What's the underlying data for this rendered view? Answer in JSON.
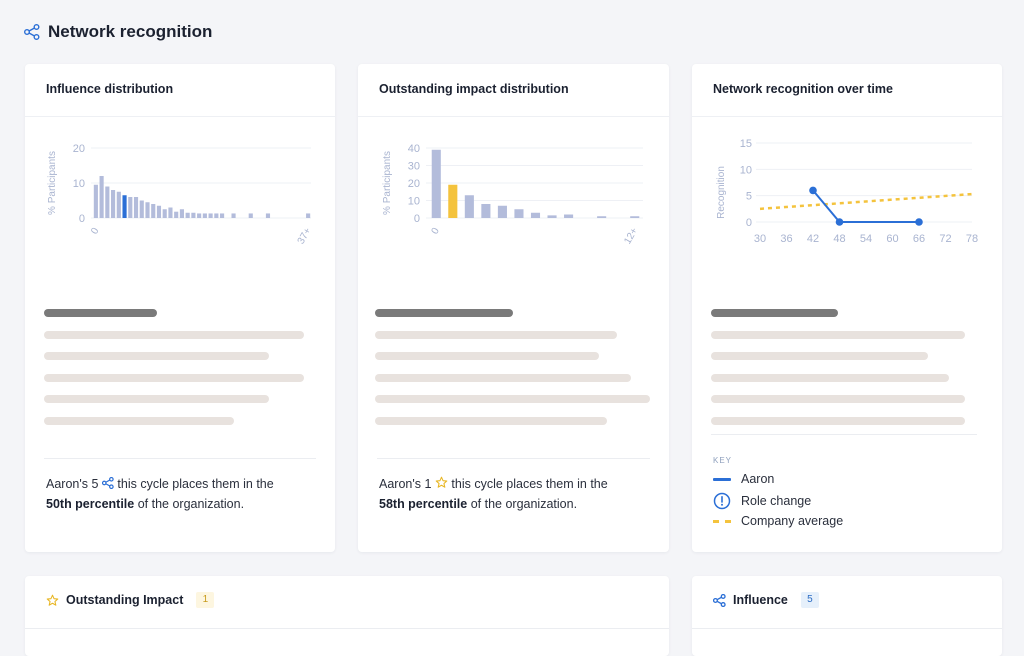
{
  "page": {
    "title": "Network recognition"
  },
  "cards": {
    "influence": {
      "title": "Influence distribution",
      "summary_prefix": "Aaron's 5",
      "summary_mid": "this cycle places them in the",
      "summary_percentile": "50th percentile",
      "summary_suffix": "of the organization."
    },
    "impact": {
      "title": "Outstanding impact distribution",
      "summary_prefix": "Aaron's 1",
      "summary_mid": "this cycle places them in the",
      "summary_percentile": "58th percentile",
      "summary_suffix": "of the organization."
    },
    "over_time": {
      "title": "Network recognition over time",
      "key_label": "KEY",
      "key_items": [
        "Aaron",
        "Role change",
        "Company average"
      ]
    }
  },
  "bottom": {
    "impact": {
      "title": "Outstanding Impact",
      "count": "1"
    },
    "influence": {
      "title": "Influence",
      "count": "5"
    }
  },
  "colors": {
    "bar": "#b3bcdb",
    "bar_highlight_blue": "#2b6fd6",
    "bar_highlight_yellow": "#f4c33d",
    "aaron_line": "#2b6fd6",
    "company_avg": "#f4c33d",
    "axis_text": "#a9b4d0"
  },
  "chart_data": [
    {
      "type": "bar",
      "ylabel": "% Participants",
      "ylim": [
        0,
        20
      ],
      "yticks": [
        "0",
        "10",
        "20"
      ],
      "xtick_labels": [
        "0",
        "37+"
      ],
      "x": [
        0,
        1,
        2,
        3,
        4,
        5,
        6,
        7,
        8,
        9,
        10,
        11,
        12,
        13,
        14,
        15,
        16,
        17,
        18,
        19,
        20,
        21,
        22,
        23,
        24,
        25,
        26,
        27,
        28,
        29,
        30,
        31,
        32,
        33,
        34,
        35,
        36,
        37
      ],
      "values": [
        9.5,
        12,
        9,
        8,
        7.5,
        6.5,
        6,
        6,
        5,
        4.5,
        4,
        3.5,
        2.5,
        3,
        1.8,
        2.5,
        1.5,
        1.5,
        1.3,
        1.3,
        1.3,
        1.3,
        1.3,
        0,
        1.3,
        0,
        0,
        1.3,
        0,
        0,
        1.3,
        0,
        0,
        0,
        0,
        0,
        0,
        1.3
      ],
      "highlight_index": 5
    },
    {
      "type": "bar",
      "ylabel": "% Participants",
      "ylim": [
        0,
        40
      ],
      "yticks": [
        "0",
        "10",
        "20",
        "30",
        "40"
      ],
      "xtick_labels": [
        "0",
        "12+"
      ],
      "x": [
        0,
        1,
        2,
        3,
        4,
        5,
        6,
        7,
        8,
        9,
        10,
        11,
        12
      ],
      "values": [
        39,
        19,
        13,
        8,
        7,
        5,
        3,
        1.5,
        2,
        0,
        1,
        0,
        1
      ],
      "highlight_index": 1
    },
    {
      "type": "line",
      "ylabel": "Recognition",
      "ylim": [
        0,
        15
      ],
      "yticks": [
        "0",
        "5",
        "10",
        "15"
      ],
      "xlim": [
        30,
        78
      ],
      "xticks": [
        "30",
        "36",
        "42",
        "48",
        "54",
        "60",
        "66",
        "72",
        "78"
      ],
      "series": [
        {
          "name": "Aaron",
          "x": [
            42,
            48,
            66
          ],
          "y": [
            6,
            0,
            0
          ]
        },
        {
          "name": "Company average",
          "x": [
            30,
            78
          ],
          "y": [
            2.5,
            5.3
          ]
        }
      ]
    }
  ]
}
